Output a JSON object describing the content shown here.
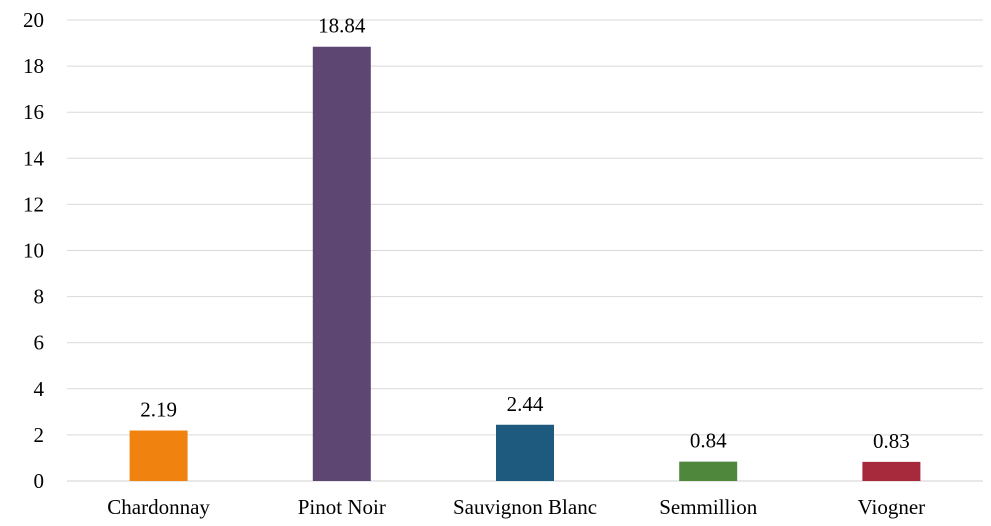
{
  "chart_data": {
    "type": "bar",
    "title": "",
    "xlabel": "",
    "ylabel": "",
    "categories": [
      "Chardonnay",
      "Pinot Noir",
      "Sauvignon Blanc",
      "Semmillion",
      "Viogner"
    ],
    "values": [
      2.19,
      18.84,
      2.44,
      0.84,
      0.83
    ],
    "data_labels": [
      "2.19",
      "18.84",
      "2.44",
      "0.84",
      "0.83"
    ],
    "colors": [
      "#f0820f",
      "#5e4673",
      "#1e5a7d",
      "#4f883c",
      "#a62a3c"
    ],
    "ylim": [
      0,
      20
    ],
    "yticks": [
      0,
      2,
      4,
      6,
      8,
      10,
      12,
      14,
      16,
      18,
      20
    ],
    "ytick_labels": [
      "0",
      "2",
      "4",
      "6",
      "8",
      "10",
      "12",
      "14",
      "16",
      "18",
      "20"
    ],
    "grid": true,
    "legend": "none"
  }
}
